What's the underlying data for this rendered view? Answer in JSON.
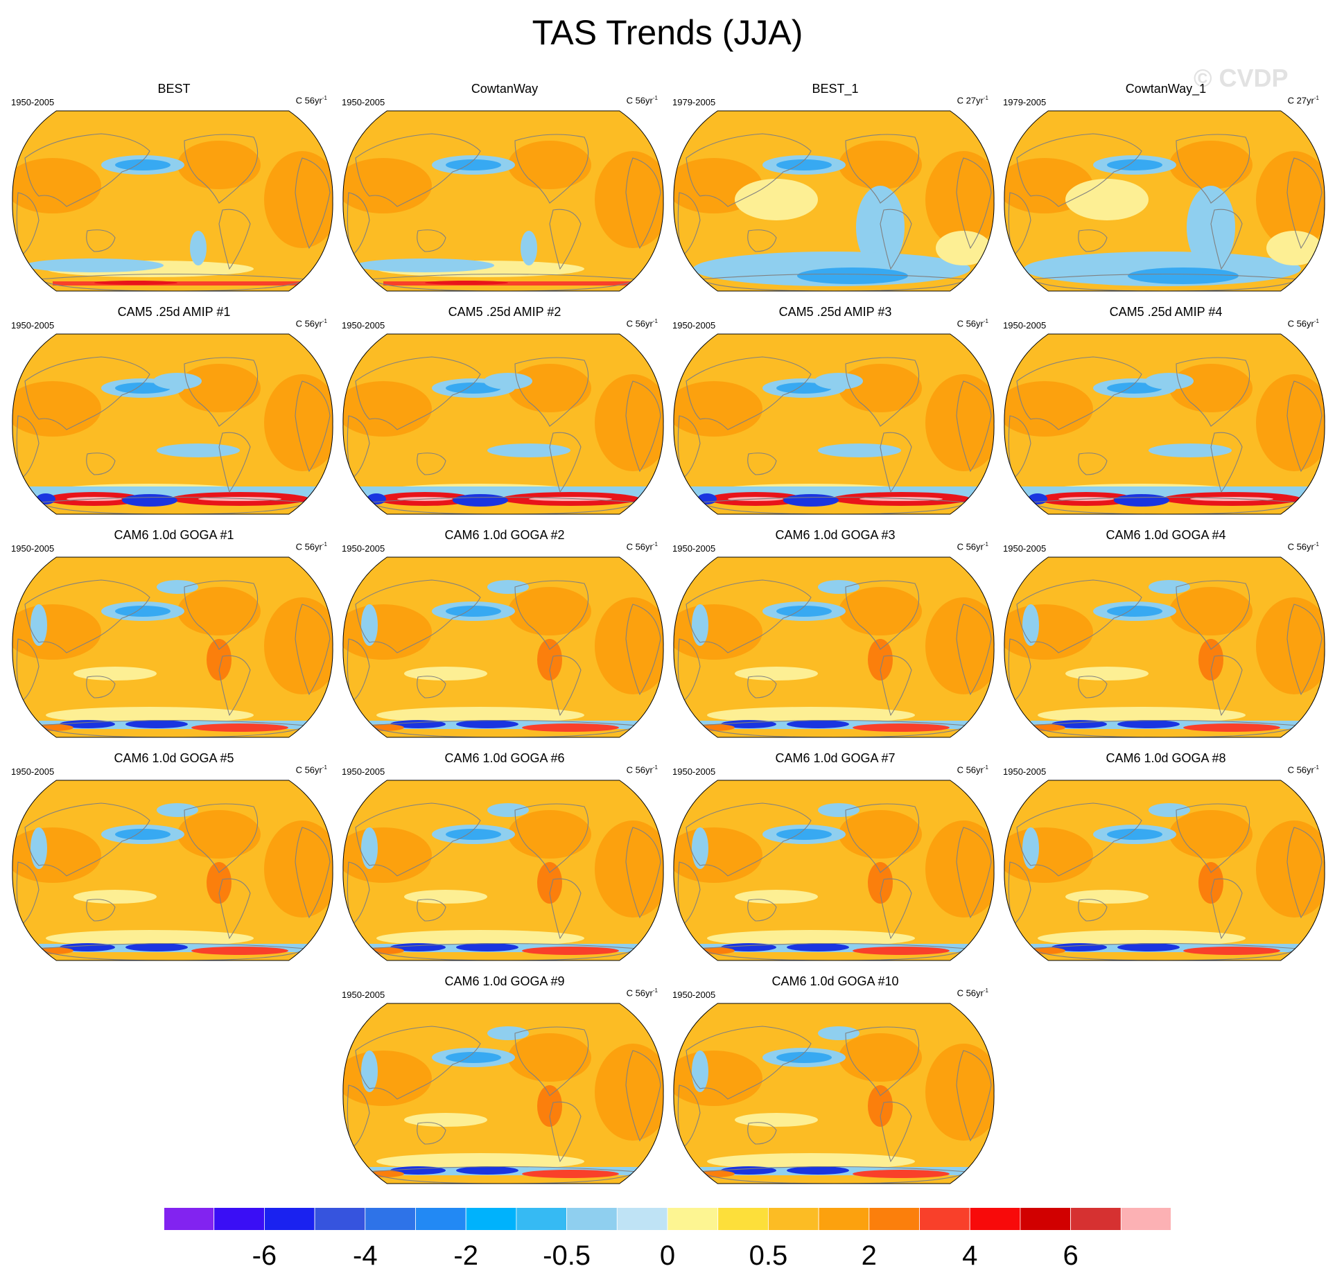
{
  "title": "TAS Trends (JJA)",
  "watermark": "© CVDP",
  "panels": [
    {
      "title": "BEST",
      "period": "1950-2005",
      "units": "C 56yr",
      "units_exp": "-1",
      "variant": "obs"
    },
    {
      "title": "CowtanWay",
      "period": "1950-2005",
      "units": "C 56yr",
      "units_exp": "-1",
      "variant": "obs"
    },
    {
      "title": "BEST_1",
      "period": "1979-2005",
      "units": "C 27yr",
      "units_exp": "-1",
      "variant": "obs_short"
    },
    {
      "title": "CowtanWay_1",
      "period": "1979-2005",
      "units": "C 27yr",
      "units_exp": "-1",
      "variant": "obs_short"
    },
    {
      "title": "CAM5 .25d AMIP #1",
      "period": "1950-2005",
      "units": "C 56yr",
      "units_exp": "-1",
      "variant": "amip"
    },
    {
      "title": "CAM5 .25d AMIP #2",
      "period": "1950-2005",
      "units": "C 56yr",
      "units_exp": "-1",
      "variant": "amip"
    },
    {
      "title": "CAM5 .25d AMIP #3",
      "period": "1950-2005",
      "units": "C 56yr",
      "units_exp": "-1",
      "variant": "amip"
    },
    {
      "title": "CAM5 .25d AMIP #4",
      "period": "1950-2005",
      "units": "C 56yr",
      "units_exp": "-1",
      "variant": "amip"
    },
    {
      "title": "CAM6 1.0d GOGA #1",
      "period": "1950-2005",
      "units": "C 56yr",
      "units_exp": "-1",
      "variant": "goga"
    },
    {
      "title": "CAM6 1.0d GOGA #2",
      "period": "1950-2005",
      "units": "C 56yr",
      "units_exp": "-1",
      "variant": "goga"
    },
    {
      "title": "CAM6 1.0d GOGA #3",
      "period": "1950-2005",
      "units": "C 56yr",
      "units_exp": "-1",
      "variant": "goga"
    },
    {
      "title": "CAM6 1.0d GOGA #4",
      "period": "1950-2005",
      "units": "C 56yr",
      "units_exp": "-1",
      "variant": "goga"
    },
    {
      "title": "CAM6 1.0d GOGA #5",
      "period": "1950-2005",
      "units": "C 56yr",
      "units_exp": "-1",
      "variant": "goga"
    },
    {
      "title": "CAM6 1.0d GOGA #6",
      "period": "1950-2005",
      "units": "C 56yr",
      "units_exp": "-1",
      "variant": "goga"
    },
    {
      "title": "CAM6 1.0d GOGA #7",
      "period": "1950-2005",
      "units": "C 56yr",
      "units_exp": "-1",
      "variant": "goga"
    },
    {
      "title": "CAM6 1.0d GOGA #8",
      "period": "1950-2005",
      "units": "C 56yr",
      "units_exp": "-1",
      "variant": "goga"
    },
    {
      "title": "CAM6 1.0d GOGA #9",
      "period": "1950-2005",
      "units": "C 56yr",
      "units_exp": "-1",
      "variant": "goga"
    },
    {
      "title": "CAM6 1.0d GOGA #10",
      "period": "1950-2005",
      "units": "C 56yr",
      "units_exp": "-1",
      "variant": "goga"
    }
  ],
  "palette": {
    "ocean_base": "#fcbc24",
    "warm": "#fca10e",
    "warmer": "#fb7f0c",
    "hot": "#f9402a",
    "hottest": "#e8141a",
    "pale": "#fdef94",
    "coolest_pale": "#bfe3f5",
    "cool": "#8fcfef",
    "cold": "#37a9f2",
    "colder": "#2f7fe8",
    "deep_cold": "#1a35e0",
    "coast": "#808080"
  },
  "chart_data": {
    "type": "heatmap",
    "projection": "robinson",
    "colorbar": {
      "colors": [
        "#8223f0",
        "#3a0ef5",
        "#1a22f0",
        "#3654de",
        "#2e73e8",
        "#2289f4",
        "#00b2fc",
        "#36baf3",
        "#8fcfef",
        "#bfe3f5",
        "#fdf592",
        "#fddf3a",
        "#fcbc24",
        "#fca10e",
        "#fb7f0c",
        "#f9402a",
        "#f80a0a",
        "#d10000",
        "#d63131",
        "#fcb1b4"
      ],
      "tick_labels": [
        "-6",
        "-4",
        "-2",
        "-0.5",
        "0",
        "0.5",
        "2",
        "4",
        "6"
      ],
      "tick_boundaries": [
        2,
        4,
        6,
        8,
        10,
        12,
        14,
        16,
        18
      ]
    }
  }
}
